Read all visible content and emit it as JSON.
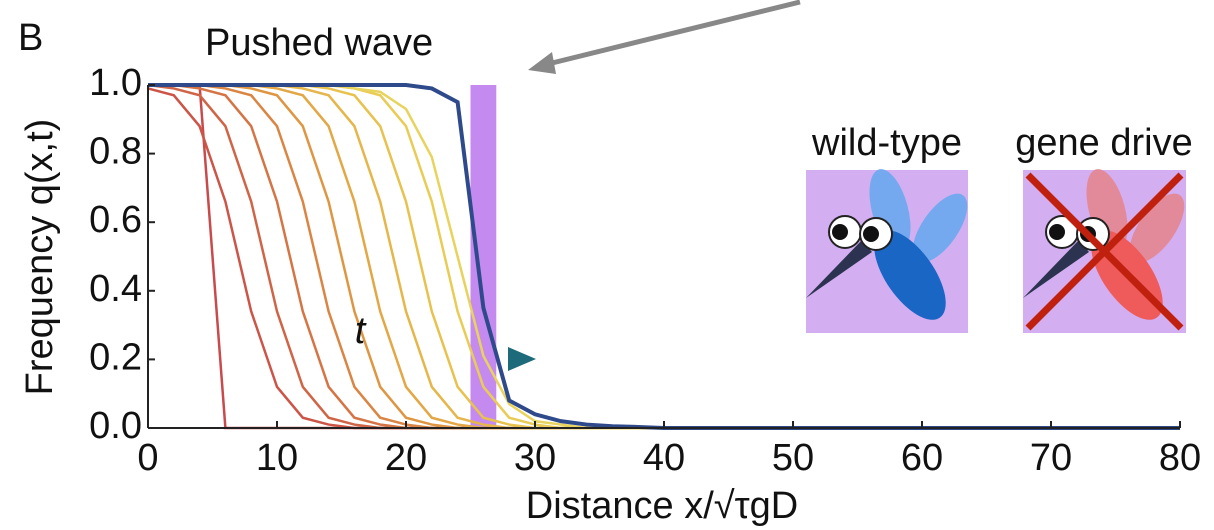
{
  "chart_data": {
    "type": "line",
    "panel_label": "B",
    "title": "Pushed wave",
    "x_label": "Distance x/√τgD",
    "y_label": "Frequency q(x,t)",
    "arrow_label": "t",
    "legend_labels": [
      "wild-type",
      "gene drive"
    ],
    "legend_colors": [
      "#2f7fd6",
      "#ee6b6b"
    ],
    "shade": {
      "x": [
        25,
        27
      ],
      "color": "#c58af0"
    },
    "xlim": [
      0,
      80
    ],
    "xticks": [
      0,
      10,
      20,
      30,
      40,
      50,
      60,
      70,
      80
    ],
    "ylim": [
      0,
      1
    ],
    "yticks": [
      {
        "value": 0,
        "label": "0.0"
      },
      0.2,
      0.4,
      0.6,
      0.8,
      {
        "value": 1,
        "label": "1.0"
      }
    ],
    "x": [
      0,
      2,
      4,
      6,
      8,
      10,
      12,
      14,
      16,
      18,
      20,
      22,
      24,
      26,
      28,
      30,
      32,
      34,
      36,
      38,
      40,
      50,
      60,
      70,
      80
    ],
    "series": [
      {
        "color": "#c94a4a",
        "values": [
          1,
          1,
          1,
          0,
          0,
          0,
          0,
          0,
          0,
          0,
          0,
          0,
          0,
          0,
          0,
          0,
          0,
          0,
          0,
          0,
          0,
          0,
          0,
          0,
          0
        ]
      },
      {
        "color": "#cc5548",
        "values": [
          0.99,
          0.97,
          0.88,
          0.66,
          0.34,
          0.12,
          0.03,
          0.01,
          0,
          0,
          0,
          0,
          0,
          0,
          0,
          0,
          0,
          0,
          0,
          0,
          0,
          0,
          0,
          0,
          0
        ]
      },
      {
        "color": "#d06446",
        "values": [
          1,
          0.99,
          0.97,
          0.88,
          0.66,
          0.34,
          0.12,
          0.03,
          0.01,
          0,
          0,
          0,
          0,
          0,
          0,
          0,
          0,
          0,
          0,
          0,
          0,
          0,
          0,
          0,
          0
        ]
      },
      {
        "color": "#d57444",
        "values": [
          1,
          1,
          0.99,
          0.97,
          0.88,
          0.66,
          0.34,
          0.12,
          0.03,
          0.01,
          0,
          0,
          0,
          0,
          0,
          0,
          0,
          0,
          0,
          0,
          0,
          0,
          0,
          0,
          0
        ]
      },
      {
        "color": "#da8543",
        "values": [
          1,
          1,
          1,
          0.99,
          0.97,
          0.88,
          0.66,
          0.34,
          0.12,
          0.03,
          0.01,
          0,
          0,
          0,
          0,
          0,
          0,
          0,
          0,
          0,
          0,
          0,
          0,
          0,
          0
        ]
      },
      {
        "color": "#df9643",
        "values": [
          1,
          1,
          1,
          1,
          0.99,
          0.97,
          0.88,
          0.66,
          0.34,
          0.12,
          0.03,
          0.01,
          0,
          0,
          0,
          0,
          0,
          0,
          0,
          0,
          0,
          0,
          0,
          0,
          0
        ]
      },
      {
        "color": "#e3a745",
        "values": [
          1,
          1,
          1,
          1,
          1,
          0.99,
          0.97,
          0.88,
          0.66,
          0.34,
          0.12,
          0.03,
          0.01,
          0,
          0,
          0,
          0,
          0,
          0,
          0,
          0,
          0,
          0,
          0,
          0
        ]
      },
      {
        "color": "#e6b64a",
        "values": [
          1,
          1,
          1,
          1,
          1,
          1,
          0.99,
          0.97,
          0.88,
          0.66,
          0.34,
          0.12,
          0.03,
          0.01,
          0,
          0,
          0,
          0,
          0,
          0,
          0,
          0,
          0,
          0,
          0
        ]
      },
      {
        "color": "#e8c24f",
        "values": [
          1,
          1,
          1,
          1,
          1,
          1,
          1,
          0.99,
          0.97,
          0.88,
          0.66,
          0.34,
          0.12,
          0.03,
          0.01,
          0,
          0,
          0,
          0,
          0,
          0,
          0,
          0,
          0,
          0
        ]
      },
      {
        "color": "#e9cc55",
        "values": [
          1,
          1,
          1,
          1,
          1,
          1,
          1,
          1,
          0.99,
          0.97,
          0.88,
          0.66,
          0.34,
          0.12,
          0.03,
          0.01,
          0,
          0,
          0,
          0,
          0,
          0,
          0,
          0,
          0
        ]
      },
      {
        "color": "#e8d35c",
        "values": [
          1,
          1,
          1,
          1,
          1,
          1,
          1,
          1,
          0.99,
          0.98,
          0.93,
          0.79,
          0.5,
          0.21,
          0.07,
          0.02,
          0.01,
          0,
          0,
          0,
          0,
          0,
          0,
          0,
          0
        ]
      },
      {
        "color": "#2e4a8a",
        "values": [
          1,
          1,
          1,
          1,
          1,
          1,
          1,
          1,
          1,
          1,
          1,
          0.99,
          0.95,
          0.35,
          0.08,
          0.04,
          0.02,
          0.01,
          0.005,
          0.003,
          0,
          0,
          0,
          0,
          0
        ]
      }
    ]
  }
}
